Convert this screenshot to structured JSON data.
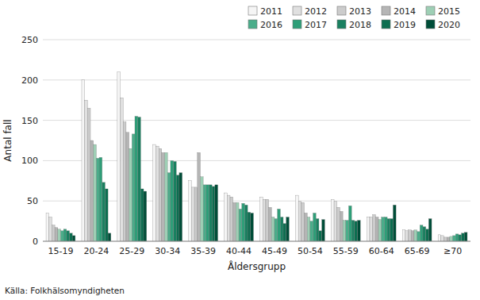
{
  "chart_data": {
    "type": "bar",
    "xlabel": "Åldersgrupp",
    "ylabel": "Antal fall",
    "annotations": [
      "Källa: Folkhälsomyndigheten"
    ],
    "categories": [
      "15-19",
      "20-24",
      "25-29",
      "30-34",
      "35-39",
      "40-44",
      "45-49",
      "50-54",
      "55-59",
      "60-64",
      "65-69",
      "≥70"
    ],
    "series": [
      {
        "name": "2011",
        "color": "#f5f5f5",
        "values": [
          35,
          200,
          210,
          120,
          75,
          60,
          55,
          57,
          52,
          30,
          14,
          8
        ]
      },
      {
        "name": "2012",
        "color": "#e0e0e0",
        "values": [
          30,
          175,
          178,
          118,
          67,
          57,
          52,
          50,
          50,
          30,
          13,
          7
        ]
      },
      {
        "name": "2013",
        "color": "#cccccc",
        "values": [
          20,
          165,
          148,
          115,
          67,
          55,
          52,
          48,
          42,
          33,
          14,
          5
        ]
      },
      {
        "name": "2014",
        "color": "#b5b5b5",
        "values": [
          17,
          125,
          135,
          110,
          110,
          48,
          42,
          35,
          37,
          30,
          13,
          5
        ]
      },
      {
        "name": "2015",
        "color": "#9ecfb5",
        "values": [
          15,
          120,
          115,
          110,
          80,
          48,
          30,
          30,
          26,
          27,
          14,
          6
        ]
      },
      {
        "name": "2016",
        "color": "#4aad8a",
        "values": [
          13,
          103,
          133,
          85,
          70,
          40,
          28,
          25,
          26,
          30,
          12,
          7
        ]
      },
      {
        "name": "2017",
        "color": "#2e9e78",
        "values": [
          15,
          104,
          155,
          100,
          70,
          47,
          40,
          35,
          44,
          30,
          20,
          9
        ]
      },
      {
        "name": "2018",
        "color": "#1a8060",
        "values": [
          13,
          73,
          154,
          99,
          70,
          45,
          30,
          28,
          26,
          28,
          18,
          8
        ]
      },
      {
        "name": "2019",
        "color": "#0d6e50",
        "values": [
          10,
          65,
          65,
          82,
          68,
          36,
          22,
          13,
          25,
          28,
          15,
          10
        ]
      },
      {
        "name": "2020",
        "color": "#004d38",
        "values": [
          7,
          10,
          62,
          85,
          70,
          35,
          30,
          27,
          26,
          45,
          28,
          11
        ]
      }
    ],
    "ylim": [
      0,
      250
    ],
    "yticks": [
      0,
      50,
      100,
      150,
      200,
      250
    ],
    "grid": true,
    "legend": "upper right"
  }
}
